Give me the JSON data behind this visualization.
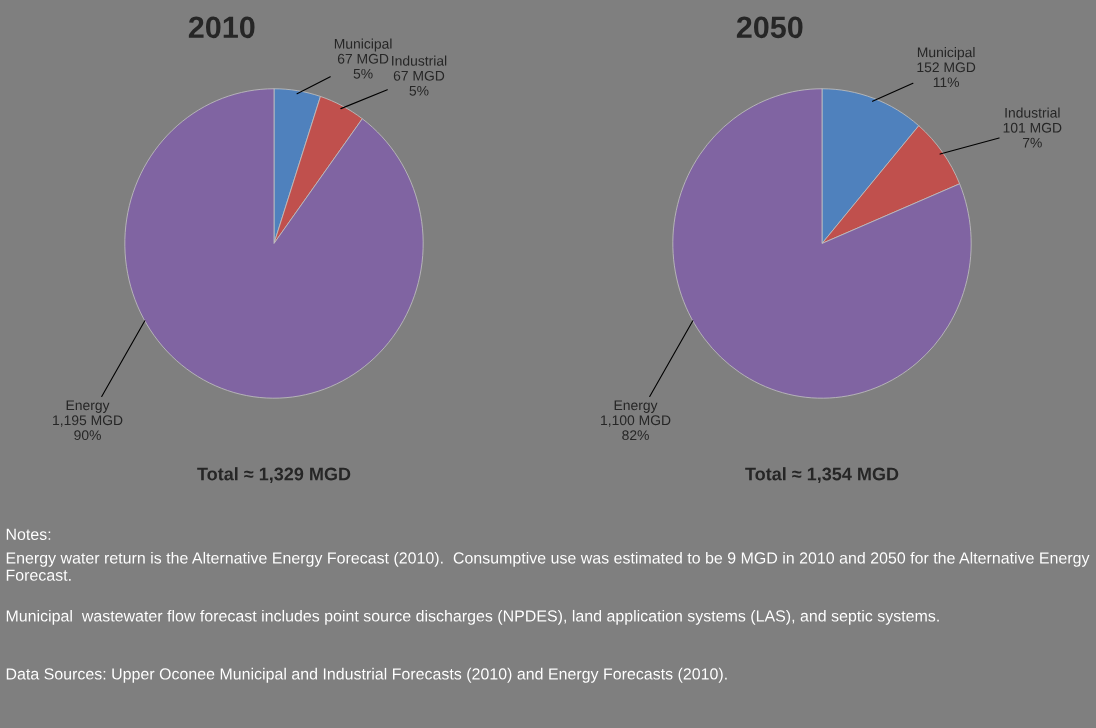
{
  "chart_data": [
    {
      "type": "pie",
      "title": "2010",
      "categories": [
        "Municipal",
        "Industrial",
        "Energy"
      ],
      "values": [
        67,
        67,
        1195
      ],
      "colors": [
        "#4f81bd",
        "#c0504d",
        "#8064a2"
      ],
      "value_labels": [
        "67 MGD\n5%",
        "67 MGD\n5%",
        "1,195 MGD\n90%"
      ],
      "annotations": [
        "Total ≈ 1,329 MGD"
      ]
    },
    {
      "type": "pie",
      "title": "2050",
      "categories": [
        "Municipal",
        "Industrial",
        "Energy"
      ],
      "values": [
        152,
        101,
        1100
      ],
      "colors": [
        "#4f81bd",
        "#c0504d",
        "#8064a2"
      ],
      "value_labels": [
        "152 MGD\n11%",
        "101 MGD\n7%",
        "1,100 MGD\n82%"
      ],
      "annotations": [
        "Total ≈ 1,354 MGD"
      ]
    },
    {
      "type": "other",
      "title": "Notes:",
      "annotations": [
        "Energy water return is the Alternative Energy Forecast (2010).  Consumptive use was estimated to be 9 MGD in 2010 and 2050 for the Alternative Energy Forecast.",
        "Municipal  wastewater flow forecast includes point source discharges (NPDES), land application systems (LAS), and septic systems.",
        "Data Sources: Upper Oconee Municipal and Industrial Forecasts (2010) and Energy Forecasts (2010)."
      ]
    }
  ]
}
